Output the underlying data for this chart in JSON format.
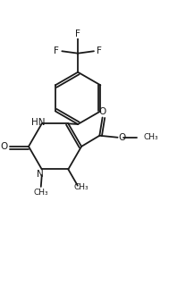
{
  "bg_color": "#ffffff",
  "line_color": "#1a1a1a",
  "line_width": 1.3,
  "font_size": 7.5,
  "figsize": [
    1.89,
    3.29
  ],
  "dpi": 100,
  "xlim": [
    -2.0,
    2.5
  ],
  "ylim": [
    -1.8,
    4.2
  ]
}
